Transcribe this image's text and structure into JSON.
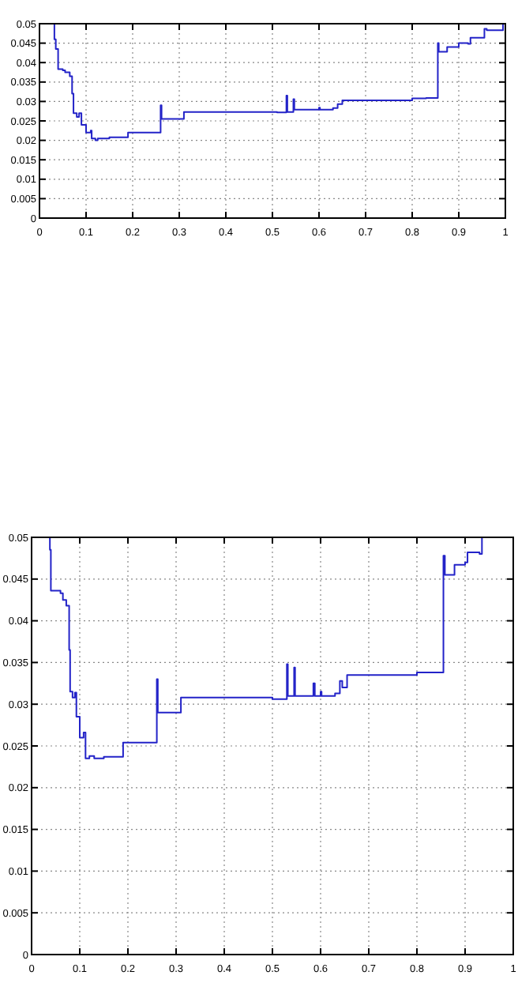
{
  "chart_data": [
    {
      "type": "step",
      "x": [
        0.03,
        0.032,
        0.035,
        0.04,
        0.05,
        0.055,
        0.065,
        0.07,
        0.073,
        0.08,
        0.085,
        0.09,
        0.1,
        0.11,
        0.112,
        0.12,
        0.125,
        0.15,
        0.19,
        0.26,
        0.262,
        0.31,
        0.51,
        0.53,
        0.532,
        0.545,
        0.547,
        0.6,
        0.602,
        0.63,
        0.64,
        0.65,
        0.8,
        0.83,
        0.855,
        0.857,
        0.875,
        0.9,
        0.92,
        0.925,
        0.955,
        0.96,
        0.995
      ],
      "series": [
        {
          "color": "#2323c8",
          "values": [
            0.05,
            0.046,
            0.0435,
            0.0383,
            0.038,
            0.0375,
            0.0365,
            0.032,
            0.027,
            0.026,
            0.027,
            0.024,
            0.022,
            0.0225,
            0.0205,
            0.02,
            0.0205,
            0.0208,
            0.022,
            0.029,
            0.0255,
            0.0273,
            0.0272,
            0.0315,
            0.0273,
            0.0306,
            0.0279,
            0.0284,
            0.0279,
            0.0283,
            0.0293,
            0.0303,
            0.0308,
            0.0309,
            0.045,
            0.0428,
            0.044,
            0.045,
            0.0448,
            0.0464,
            0.0487,
            0.0483,
            0.05
          ]
        }
      ],
      "xlim": [
        0,
        1
      ],
      "ylim": [
        0,
        0.05
      ],
      "xticks": [
        0,
        0.1,
        0.2,
        0.3,
        0.4,
        0.5,
        0.6,
        0.7,
        0.8,
        0.9,
        1
      ],
      "yticks": [
        0,
        0.005,
        0.01,
        0.015,
        0.02,
        0.025,
        0.03,
        0.035,
        0.04,
        0.045,
        0.05
      ],
      "grid": true,
      "line_style": "solid"
    },
    {
      "type": "step",
      "x": [
        0.035,
        0.038,
        0.04,
        0.06,
        0.065,
        0.072,
        0.078,
        0.08,
        0.085,
        0.09,
        0.093,
        0.1,
        0.108,
        0.112,
        0.12,
        0.13,
        0.15,
        0.19,
        0.26,
        0.262,
        0.31,
        0.5,
        0.53,
        0.532,
        0.545,
        0.547,
        0.585,
        0.588,
        0.6,
        0.602,
        0.63,
        0.64,
        0.645,
        0.655,
        0.8,
        0.855,
        0.858,
        0.878,
        0.9,
        0.905,
        0.93,
        0.935
      ],
      "series": [
        {
          "color": "#2323c8",
          "values": [
            0.05,
            0.0485,
            0.0436,
            0.0433,
            0.0425,
            0.0418,
            0.0365,
            0.0315,
            0.0308,
            0.0314,
            0.0285,
            0.026,
            0.0266,
            0.0235,
            0.0238,
            0.0235,
            0.0237,
            0.0254,
            0.033,
            0.029,
            0.0308,
            0.0306,
            0.0348,
            0.031,
            0.0344,
            0.031,
            0.0325,
            0.031,
            0.0315,
            0.031,
            0.0313,
            0.0328,
            0.032,
            0.0335,
            0.0338,
            0.0478,
            0.0455,
            0.0467,
            0.047,
            0.0482,
            0.048,
            0.05
          ]
        }
      ],
      "xlim": [
        0,
        1
      ],
      "ylim": [
        0,
        0.05
      ],
      "xticks": [
        0,
        0.1,
        0.2,
        0.3,
        0.4,
        0.5,
        0.6,
        0.7,
        0.8,
        0.9,
        1
      ],
      "yticks": [
        0,
        0.005,
        0.01,
        0.015,
        0.02,
        0.025,
        0.03,
        0.035,
        0.04,
        0.045,
        0.05
      ],
      "grid": true,
      "line_style": "solid"
    }
  ]
}
